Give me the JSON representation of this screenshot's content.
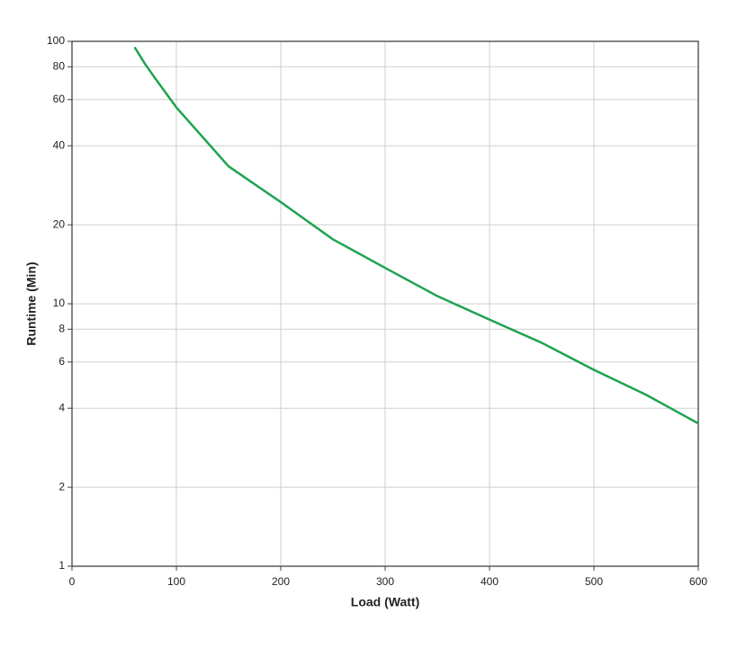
{
  "chart_data": {
    "type": "line",
    "x_label": "Load (Watt)",
    "y_label": "Runtime (Min)",
    "x": [
      60,
      70,
      80,
      100,
      150,
      200,
      250,
      300,
      350,
      400,
      450,
      500,
      550,
      600
    ],
    "series": [
      {
        "name": "Runtime",
        "color": "#1ea34f",
        "values": [
          95,
          82,
          72,
          56,
          33.4,
          24.4,
          17.6,
          13.7,
          10.7,
          8.7,
          7.1,
          5.6,
          4.5,
          3.5
        ]
      }
    ],
    "xlim": [
      0,
      600
    ],
    "xticks": [
      0,
      100,
      200,
      300,
      400,
      500,
      600
    ],
    "ylim": [
      1,
      100
    ],
    "yticks": [
      1,
      2,
      4,
      6,
      8,
      10,
      20,
      40,
      60,
      80,
      100
    ],
    "log_y": true,
    "grid": true
  }
}
